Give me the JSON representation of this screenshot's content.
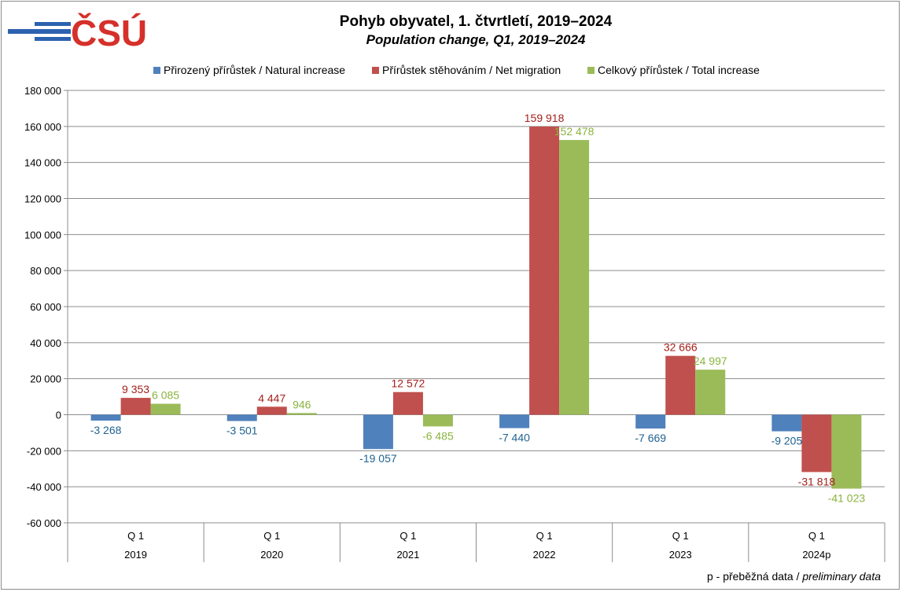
{
  "title": "Pohyb obyvatel, 1. čtvrtletí, 2019–2024",
  "subtitle": "Population change, Q1, 2019–2024",
  "logo_text": "ČSÚ",
  "footnote": {
    "cz": "p - přeběžná data / ",
    "en": "preliminary data"
  },
  "colors": {
    "natural": "#4f81bd",
    "migration": "#c0504d",
    "total": "#9bbb59",
    "natural_label": "#1f6391",
    "migration_label": "#a5201c",
    "total_label": "#8ab33e",
    "logo": "#d5302a"
  },
  "chart_data": {
    "type": "bar",
    "title": "Pohyb obyvatel, 1. čtvrtletí, 2019–2024",
    "subtitle": "Population change, Q1, 2019–2024",
    "categories": [
      "2019",
      "2020",
      "2021",
      "2022",
      "2023",
      "2024p"
    ],
    "quarter_labels": [
      "Q 1",
      "Q 1",
      "Q 1",
      "Q 1",
      "Q 1",
      "Q 1"
    ],
    "series": [
      {
        "name": "Přirozený přírůstek / Natural increase",
        "values": [
          -3268,
          -3501,
          -19057,
          -7440,
          -7669,
          -9205
        ],
        "labels": [
          "-3 268",
          "-3 501",
          "-19 057",
          "-7 440",
          "-7 669",
          "-9 205"
        ]
      },
      {
        "name": "Přírůstek stěhováním / Net migration",
        "values": [
          9353,
          4447,
          12572,
          159918,
          32666,
          -31818
        ],
        "labels": [
          "9 353",
          "4 447",
          "12 572",
          "159 918",
          "32 666",
          "-31 818"
        ]
      },
      {
        "name": "Celkový přírůstek / Total increase",
        "values": [
          6085,
          946,
          -6485,
          152478,
          24997,
          -41023
        ],
        "labels": [
          "6 085",
          "946",
          "-6 485",
          "152 478",
          "24 997",
          "-41 023"
        ]
      }
    ],
    "ylim": [
      -60000,
      180000
    ],
    "yticks": [
      180000,
      160000,
      140000,
      120000,
      100000,
      80000,
      60000,
      40000,
      20000,
      0,
      -20000,
      -40000,
      -60000
    ],
    "ytick_labels": [
      "180 000",
      "160 000",
      "140 000",
      "120 000",
      "100 000",
      "80 000",
      "60 000",
      "40 000",
      "20 000",
      "0",
      "-20 000",
      "-40 000",
      "-60 000"
    ],
    "grid": true,
    "legend": "top"
  }
}
